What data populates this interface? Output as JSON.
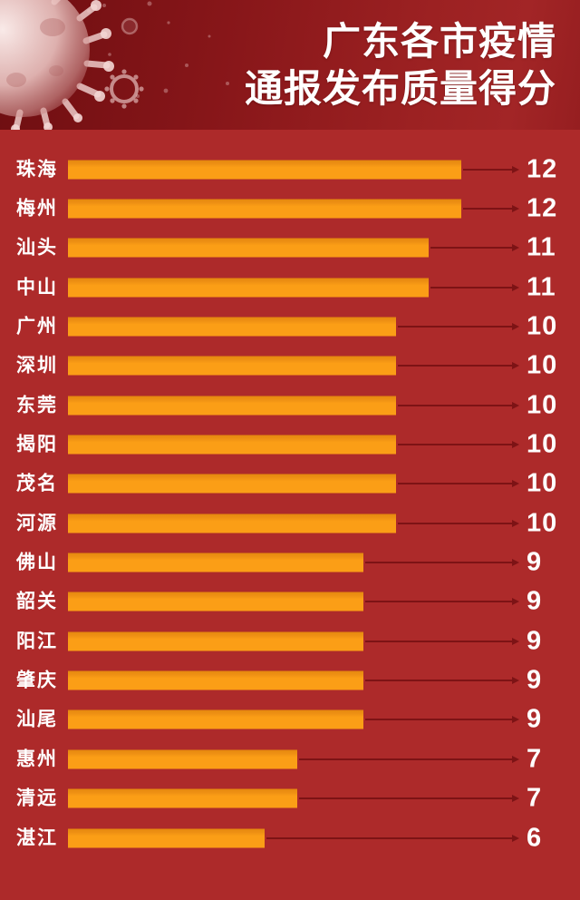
{
  "page": {
    "background_color": "#ad2a2a",
    "text_color": "#ffffff",
    "header": {
      "title_line1": "广东各市疫情",
      "title_line2": "通报发布质量得分",
      "background_dark": "#6e0e11",
      "background_light": "#a22526",
      "illustration": "coronavirus"
    }
  },
  "chart_data": {
    "type": "bar",
    "orientation": "horizontal",
    "title": "广东各市疫情通报发布质量得分",
    "categories": [
      "珠海",
      "梅州",
      "汕头",
      "中山",
      "广州",
      "深圳",
      "东莞",
      "揭阳",
      "茂名",
      "河源",
      "佛山",
      "韶关",
      "阳江",
      "肇庆",
      "汕尾",
      "惠州",
      "清远",
      "湛江"
    ],
    "values": [
      12,
      12,
      11,
      11,
      10,
      10,
      10,
      10,
      10,
      10,
      9,
      9,
      9,
      9,
      9,
      7,
      7,
      6
    ],
    "xlim": [
      0,
      12
    ],
    "grid": false,
    "legend": false,
    "bar_color": "#fb9e16",
    "bar_top_edge_color": "#e5880e",
    "connector_color": "#7d1315",
    "category_label_color": "#ffffff",
    "value_label_color": "#ffffff",
    "background_color": "#ad2a2a"
  }
}
